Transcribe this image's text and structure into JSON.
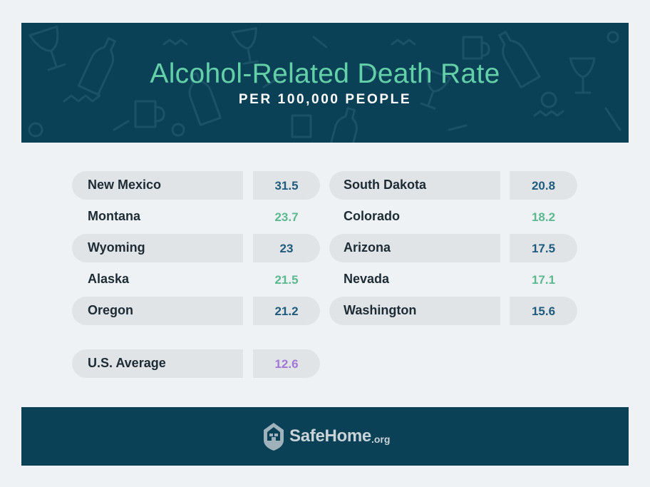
{
  "header": {
    "title": "Alcohol-Related Death Rate",
    "subtitle": "PER 100,000 PEOPLE"
  },
  "left_table": [
    {
      "state": "New Mexico",
      "rate": "31.5"
    },
    {
      "state": "Montana",
      "rate": "23.7"
    },
    {
      "state": "Wyoming",
      "rate": "23"
    },
    {
      "state": "Alaska",
      "rate": "21.5"
    },
    {
      "state": "Oregon",
      "rate": "21.2"
    }
  ],
  "right_table": [
    {
      "state": "South Dakota",
      "rate": "20.8"
    },
    {
      "state": "Colorado",
      "rate": "18.2"
    },
    {
      "state": "Arizona",
      "rate": "17.5"
    },
    {
      "state": "Nevada",
      "rate": "17.1"
    },
    {
      "state": "Washington",
      "rate": "15.6"
    }
  ],
  "average": {
    "label": "U.S. Average",
    "rate": "12.6"
  },
  "footer": {
    "logo_name": "SafeHome",
    "logo_tld": ".org",
    "logo_icon": "house-shield-icon"
  },
  "colors": {
    "banner": "#0b4157",
    "title": "#63d0a8",
    "value_dark": "#1f5b7e",
    "value_green": "#5bb88f",
    "value_average": "#a177d6"
  }
}
